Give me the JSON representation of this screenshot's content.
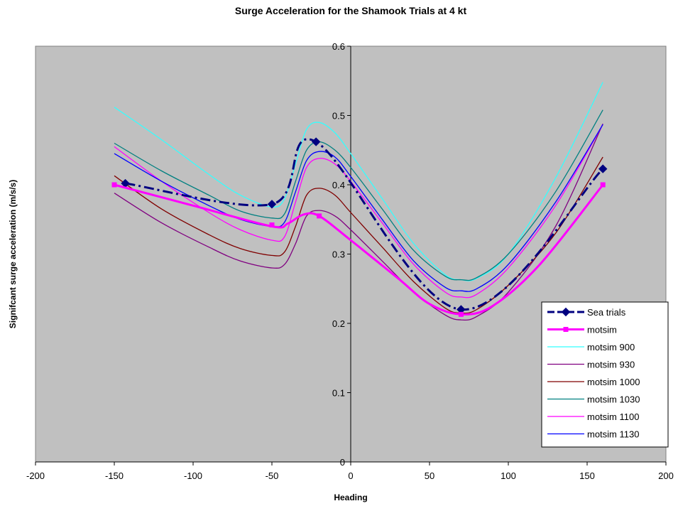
{
  "chart_data": {
    "type": "line",
    "title": "Surge Acceleration for the Shamook Trials at 4 kt",
    "xlabel": "Heading",
    "ylabel": "Signifcant surge acceleration (m/s/s)",
    "xlim": [
      -200,
      200
    ],
    "ylim": [
      0,
      0.6
    ],
    "xticks": [
      -200,
      -150,
      -100,
      -50,
      0,
      50,
      100,
      150,
      200
    ],
    "yticks": [
      0,
      0.1,
      0.2,
      0.3,
      0.4,
      0.5,
      0.6
    ],
    "grid": false,
    "legend_position": "bottom-right",
    "plot_background": "#c0c0c0",
    "series": [
      {
        "name": "Sea trials",
        "color": "#000080",
        "style": "dash-dot",
        "marker": "diamond",
        "points": [
          [
            -143,
            0.402
          ],
          [
            -50,
            0.372
          ],
          [
            -22,
            0.462
          ],
          [
            70,
            0.22
          ],
          [
            160,
            0.423
          ]
        ],
        "markers_at": [
          [
            -143,
            0.402
          ],
          [
            -50,
            0.372
          ],
          [
            -22,
            0.462
          ],
          [
            70,
            0.22
          ],
          [
            160,
            0.423
          ]
        ]
      },
      {
        "name": "motsim",
        "color": "#ff00ff",
        "style": "solid-thick",
        "marker": "square",
        "points": [
          [
            -150,
            0.4
          ],
          [
            -100,
            0.37
          ],
          [
            -50,
            0.34
          ],
          [
            -40,
            0.344
          ],
          [
            -30,
            0.357
          ],
          [
            -20,
            0.355
          ],
          [
            0,
            0.32
          ],
          [
            30,
            0.265
          ],
          [
            50,
            0.228
          ],
          [
            70,
            0.213
          ],
          [
            90,
            0.225
          ],
          [
            120,
            0.285
          ],
          [
            160,
            0.4
          ]
        ],
        "markers_at": [
          [
            -150,
            0.4
          ],
          [
            -50,
            0.342
          ],
          [
            -20,
            0.355
          ],
          [
            70,
            0.213
          ],
          [
            160,
            0.4
          ]
        ]
      },
      {
        "name": "motsim 900",
        "color": "#33ffff",
        "style": "solid",
        "points": [
          [
            -150,
            0.512
          ],
          [
            -120,
            0.465
          ],
          [
            -90,
            0.415
          ],
          [
            -70,
            0.385
          ],
          [
            -50,
            0.368
          ],
          [
            -42,
            0.38
          ],
          [
            -35,
            0.43
          ],
          [
            -28,
            0.48
          ],
          [
            -20,
            0.49
          ],
          [
            -10,
            0.475
          ],
          [
            0,
            0.445
          ],
          [
            20,
            0.38
          ],
          [
            40,
            0.315
          ],
          [
            60,
            0.27
          ],
          [
            70,
            0.263
          ],
          [
            80,
            0.265
          ],
          [
            100,
            0.3
          ],
          [
            130,
            0.41
          ],
          [
            160,
            0.548
          ]
        ]
      },
      {
        "name": "motsim 930",
        "color": "#800080",
        "style": "solid",
        "points": [
          [
            -150,
            0.388
          ],
          [
            -120,
            0.345
          ],
          [
            -90,
            0.31
          ],
          [
            -70,
            0.29
          ],
          [
            -50,
            0.28
          ],
          [
            -42,
            0.285
          ],
          [
            -35,
            0.315
          ],
          [
            -28,
            0.355
          ],
          [
            -20,
            0.363
          ],
          [
            -10,
            0.355
          ],
          [
            0,
            0.335
          ],
          [
            20,
            0.29
          ],
          [
            40,
            0.245
          ],
          [
            60,
            0.212
          ],
          [
            70,
            0.205
          ],
          [
            80,
            0.21
          ],
          [
            100,
            0.245
          ],
          [
            130,
            0.34
          ],
          [
            160,
            0.488
          ]
        ]
      },
      {
        "name": "motsim 1000",
        "color": "#800000",
        "style": "solid",
        "points": [
          [
            -150,
            0.413
          ],
          [
            -120,
            0.365
          ],
          [
            -90,
            0.328
          ],
          [
            -70,
            0.308
          ],
          [
            -50,
            0.298
          ],
          [
            -42,
            0.303
          ],
          [
            -35,
            0.34
          ],
          [
            -28,
            0.385
          ],
          [
            -20,
            0.395
          ],
          [
            -10,
            0.385
          ],
          [
            0,
            0.36
          ],
          [
            20,
            0.31
          ],
          [
            40,
            0.26
          ],
          [
            60,
            0.222
          ],
          [
            70,
            0.215
          ],
          [
            80,
            0.22
          ],
          [
            100,
            0.255
          ],
          [
            130,
            0.33
          ],
          [
            160,
            0.44
          ]
        ]
      },
      {
        "name": "motsim 1030",
        "color": "#008080",
        "style": "solid",
        "points": [
          [
            -150,
            0.46
          ],
          [
            -120,
            0.42
          ],
          [
            -90,
            0.385
          ],
          [
            -70,
            0.362
          ],
          [
            -50,
            0.352
          ],
          [
            -42,
            0.358
          ],
          [
            -35,
            0.405
          ],
          [
            -28,
            0.45
          ],
          [
            -20,
            0.462
          ],
          [
            -10,
            0.45
          ],
          [
            0,
            0.425
          ],
          [
            20,
            0.365
          ],
          [
            40,
            0.305
          ],
          [
            60,
            0.268
          ],
          [
            70,
            0.263
          ],
          [
            80,
            0.266
          ],
          [
            100,
            0.3
          ],
          [
            130,
            0.39
          ],
          [
            160,
            0.508
          ]
        ]
      },
      {
        "name": "motsim 1100",
        "color": "#ff00ff",
        "style": "solid",
        "points": [
          [
            -150,
            0.455
          ],
          [
            -120,
            0.405
          ],
          [
            -90,
            0.36
          ],
          [
            -70,
            0.335
          ],
          [
            -50,
            0.32
          ],
          [
            -42,
            0.325
          ],
          [
            -35,
            0.375
          ],
          [
            -28,
            0.425
          ],
          [
            -20,
            0.438
          ],
          [
            -10,
            0.43
          ],
          [
            0,
            0.405
          ],
          [
            20,
            0.345
          ],
          [
            40,
            0.285
          ],
          [
            60,
            0.245
          ],
          [
            70,
            0.238
          ],
          [
            80,
            0.242
          ],
          [
            100,
            0.28
          ],
          [
            130,
            0.37
          ],
          [
            160,
            0.487
          ]
        ]
      },
      {
        "name": "motsim 1130",
        "color": "#0000ff",
        "style": "solid",
        "points": [
          [
            -150,
            0.445
          ],
          [
            -120,
            0.405
          ],
          [
            -90,
            0.37
          ],
          [
            -70,
            0.35
          ],
          [
            -50,
            0.34
          ],
          [
            -42,
            0.346
          ],
          [
            -35,
            0.39
          ],
          [
            -28,
            0.435
          ],
          [
            -20,
            0.448
          ],
          [
            -10,
            0.44
          ],
          [
            0,
            0.412
          ],
          [
            20,
            0.35
          ],
          [
            40,
            0.29
          ],
          [
            60,
            0.252
          ],
          [
            70,
            0.247
          ],
          [
            80,
            0.25
          ],
          [
            100,
            0.285
          ],
          [
            130,
            0.375
          ],
          [
            160,
            0.487
          ]
        ]
      }
    ]
  }
}
